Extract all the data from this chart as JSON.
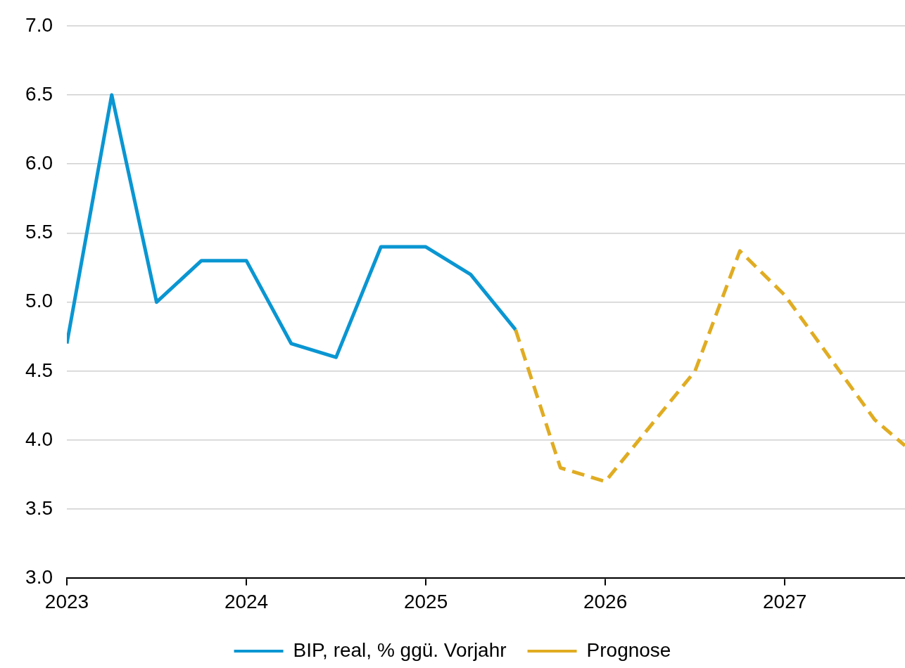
{
  "chart_data": {
    "type": "line",
    "x": [
      2023,
      2023.25,
      2023.5,
      2023.75,
      2024,
      2024.25,
      2024.5,
      2024.75,
      2025,
      2025.25,
      2025.5
    ],
    "series": [
      {
        "name": "BIP, real, % ggü. Vorjahr",
        "color": "#0a96d2",
        "line_style": "solid",
        "values": [
          4.7,
          6.5,
          5.0,
          5.3,
          5.3,
          4.7,
          4.6,
          5.4,
          5.4,
          5.2,
          4.8
        ]
      },
      {
        "name": "Prognose",
        "color": "#e0ac22",
        "line_style": "dashed",
        "x": [
          2025.5,
          2025.75,
          2026,
          2026.25,
          2026.5,
          2026.75,
          2027,
          2027.25,
          2027.5,
          2027.67
        ],
        "values": [
          4.8,
          3.8,
          3.7,
          4.1,
          4.5,
          5.37,
          5.05,
          4.6,
          4.15,
          3.96
        ]
      }
    ],
    "xlim": [
      2023,
      2027.67
    ],
    "xticks": [
      2023,
      2024,
      2025,
      2026,
      2027
    ],
    "ylim": [
      3,
      7
    ],
    "yticks": [
      {
        "value": 3,
        "label": "3.0"
      },
      {
        "value": 3.5,
        "label": "3.5"
      },
      {
        "value": 4,
        "label": "4.0"
      },
      {
        "value": 4.5,
        "label": "4.5"
      },
      {
        "value": 5,
        "label": "5.0"
      },
      {
        "value": 5.5,
        "label": "5.5"
      },
      {
        "value": 6,
        "label": "6.0"
      },
      {
        "value": 6.5,
        "label": "6.5"
      },
      {
        "value": 7,
        "label": "7.0"
      }
    ],
    "grid": "y",
    "legend": "bottom",
    "marker": "none"
  }
}
